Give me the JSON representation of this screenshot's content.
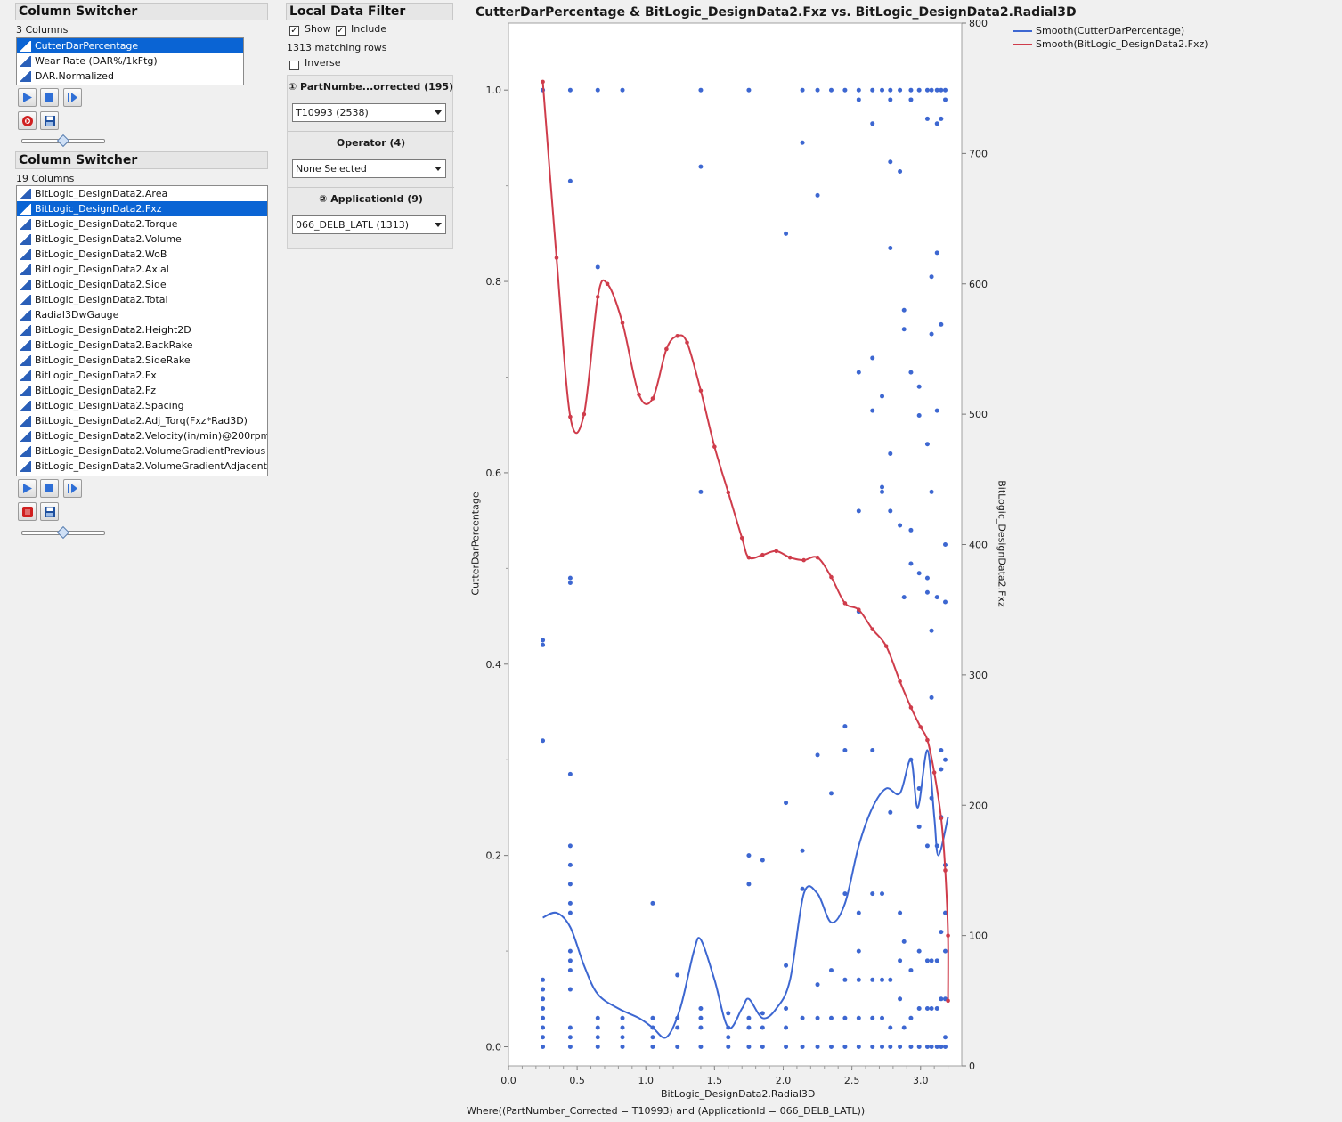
{
  "switcher1": {
    "title": "Column Switcher",
    "count": "3 Columns",
    "items": [
      {
        "label": "CutterDarPercentage",
        "selected": true
      },
      {
        "label": "Wear Rate (DAR%/1kFtg)",
        "selected": false
      },
      {
        "label": "DAR.Normalized",
        "selected": false
      }
    ]
  },
  "switcher2": {
    "title": "Column Switcher",
    "count": "19 Columns",
    "items": [
      {
        "label": "BitLogic_DesignData2.Area",
        "selected": false
      },
      {
        "label": "BitLogic_DesignData2.Fxz",
        "selected": true
      },
      {
        "label": "BitLogic_DesignData2.Torque",
        "selected": false
      },
      {
        "label": "BitLogic_DesignData2.Volume",
        "selected": false
      },
      {
        "label": "BitLogic_DesignData2.WoB",
        "selected": false
      },
      {
        "label": "BitLogic_DesignData2.Axial",
        "selected": false
      },
      {
        "label": "BitLogic_DesignData2.Side",
        "selected": false
      },
      {
        "label": "BitLogic_DesignData2.Total",
        "selected": false
      },
      {
        "label": "Radial3DwGauge",
        "selected": false
      },
      {
        "label": "BitLogic_DesignData2.Height2D",
        "selected": false
      },
      {
        "label": "BitLogic_DesignData2.BackRake",
        "selected": false
      },
      {
        "label": "BitLogic_DesignData2.SideRake",
        "selected": false
      },
      {
        "label": "BitLogic_DesignData2.Fx",
        "selected": false
      },
      {
        "label": "BitLogic_DesignData2.Fz",
        "selected": false
      },
      {
        "label": "BitLogic_DesignData2.Spacing",
        "selected": false
      },
      {
        "label": "BitLogic_DesignData2.Adj_Torq(Fxz*Rad3D)",
        "selected": false
      },
      {
        "label": "BitLogic_DesignData2.Velocity(in/min)@200rpm",
        "selected": false
      },
      {
        "label": "BitLogic_DesignData2.VolumeGradientPrevious",
        "selected": false
      },
      {
        "label": "BitLogic_DesignData2.VolumeGradientAdjacent",
        "selected": false
      }
    ]
  },
  "filter": {
    "title": "Local Data Filter",
    "show_label": "Show",
    "include_label": "Include",
    "matching": "1313 matching rows",
    "inverse_label": "Inverse",
    "sections": [
      {
        "num": "①",
        "label": "PartNumbe...orrected (195)",
        "value": "T10993 (2538)"
      },
      {
        "num": "",
        "label": "Operator (4)",
        "value": "None Selected"
      },
      {
        "num": "②",
        "label": "ApplicationId  (9)",
        "value": "066_DELB_LATL (1313)"
      }
    ]
  },
  "chart_data": {
    "type": "scatter",
    "title": "CutterDarPercentage & BitLogic_DesignData2.Fxz vs. BitLogic_DesignData2.Radial3D",
    "xlabel": "BitLogic_DesignData2.Radial3D",
    "ylabel": "CutterDarPercentage",
    "y2label": "BitLogic_DesignData2.Fxz",
    "footnote": "Where((PartNumber_Corrected = T10993) and (ApplicationId = 066_DELB_LATL))",
    "xlim": [
      0,
      3.3
    ],
    "ylim": [
      -0.02,
      1.07
    ],
    "y2lim": [
      0,
      800
    ],
    "xticks": [
      "0.0",
      "0.5",
      "1.0",
      "1.5",
      "2.0",
      "2.5",
      "3.0"
    ],
    "yticks": [
      "0.0",
      "0.2",
      "0.4",
      "0.6",
      "0.8",
      "1.0"
    ],
    "y2ticks": [
      "0",
      "100",
      "200",
      "300",
      "400",
      "500",
      "600",
      "700",
      "800"
    ],
    "legend": [
      {
        "name": "Smooth(CutterDarPercentage)",
        "color": "#3d67d1"
      },
      {
        "name": "Smooth(BitLogic_DesignData2.Fxz)",
        "color": "#cf3c4b"
      }
    ],
    "colors": {
      "points": "#3d67d1",
      "smooth1": "#3d67d1",
      "smooth2": "#cf3c4b"
    },
    "scatter_points": [
      [
        0.25,
        1.0
      ],
      [
        0.25,
        0.42
      ],
      [
        0.25,
        0.425
      ],
      [
        0.25,
        0.32
      ],
      [
        0.25,
        0.07
      ],
      [
        0.25,
        0.06
      ],
      [
        0.25,
        0.05
      ],
      [
        0.25,
        0.04
      ],
      [
        0.25,
        0.03
      ],
      [
        0.25,
        0.02
      ],
      [
        0.25,
        0.01
      ],
      [
        0.25,
        0.0
      ],
      [
        0.45,
        1.0
      ],
      [
        0.45,
        0.905
      ],
      [
        0.45,
        0.49
      ],
      [
        0.45,
        0.485
      ],
      [
        0.45,
        0.285
      ],
      [
        0.45,
        0.21
      ],
      [
        0.45,
        0.19
      ],
      [
        0.45,
        0.17
      ],
      [
        0.45,
        0.15
      ],
      [
        0.45,
        0.14
      ],
      [
        0.45,
        0.1
      ],
      [
        0.45,
        0.09
      ],
      [
        0.45,
        0.08
      ],
      [
        0.45,
        0.06
      ],
      [
        0.45,
        0.02
      ],
      [
        0.45,
        0.01
      ],
      [
        0.45,
        0.0
      ],
      [
        0.65,
        1.0
      ],
      [
        0.65,
        0.815
      ],
      [
        0.65,
        0.03
      ],
      [
        0.65,
        0.02
      ],
      [
        0.65,
        0.01
      ],
      [
        0.65,
        0.0
      ],
      [
        0.83,
        1.0
      ],
      [
        0.83,
        0.03
      ],
      [
        0.83,
        0.02
      ],
      [
        0.83,
        0.01
      ],
      [
        0.83,
        0.0
      ],
      [
        1.05,
        0.15
      ],
      [
        1.05,
        0.03
      ],
      [
        1.05,
        0.02
      ],
      [
        1.05,
        0.01
      ],
      [
        1.05,
        0.0
      ],
      [
        1.23,
        0.075
      ],
      [
        1.23,
        0.03
      ],
      [
        1.23,
        0.02
      ],
      [
        1.23,
        0.0
      ],
      [
        1.4,
        1.0
      ],
      [
        1.4,
        0.92
      ],
      [
        1.4,
        0.58
      ],
      [
        1.4,
        0.04
      ],
      [
        1.4,
        0.03
      ],
      [
        1.4,
        0.02
      ],
      [
        1.4,
        0.0
      ],
      [
        1.6,
        0.035
      ],
      [
        1.6,
        0.02
      ],
      [
        1.6,
        0.01
      ],
      [
        1.6,
        0.0
      ],
      [
        1.75,
        1.0
      ],
      [
        1.75,
        0.2
      ],
      [
        1.75,
        0.17
      ],
      [
        1.75,
        0.03
      ],
      [
        1.75,
        0.02
      ],
      [
        1.75,
        0.0
      ],
      [
        1.85,
        0.195
      ],
      [
        1.85,
        0.035
      ],
      [
        1.85,
        0.02
      ],
      [
        1.85,
        0.0
      ],
      [
        2.02,
        0.85
      ],
      [
        2.02,
        0.255
      ],
      [
        2.02,
        0.085
      ],
      [
        2.02,
        0.04
      ],
      [
        2.02,
        0.02
      ],
      [
        2.02,
        0.0
      ],
      [
        2.14,
        1.0
      ],
      [
        2.14,
        0.945
      ],
      [
        2.14,
        0.205
      ],
      [
        2.14,
        0.165
      ],
      [
        2.14,
        0.03
      ],
      [
        2.14,
        0.0
      ],
      [
        2.25,
        1.0
      ],
      [
        2.25,
        0.89
      ],
      [
        2.25,
        0.305
      ],
      [
        2.25,
        0.065
      ],
      [
        2.25,
        0.03
      ],
      [
        2.25,
        0.0
      ],
      [
        2.35,
        1.0
      ],
      [
        2.35,
        0.265
      ],
      [
        2.35,
        0.08
      ],
      [
        2.35,
        0.03
      ],
      [
        2.35,
        0.0
      ],
      [
        2.45,
        1.0
      ],
      [
        2.45,
        0.335
      ],
      [
        2.45,
        0.31
      ],
      [
        2.45,
        0.16
      ],
      [
        2.45,
        0.07
      ],
      [
        2.45,
        0.03
      ],
      [
        2.45,
        0.0
      ],
      [
        2.55,
        1.0
      ],
      [
        2.55,
        0.99
      ],
      [
        2.55,
        0.705
      ],
      [
        2.55,
        0.56
      ],
      [
        2.55,
        0.455
      ],
      [
        2.55,
        0.14
      ],
      [
        2.55,
        0.1
      ],
      [
        2.55,
        0.07
      ],
      [
        2.55,
        0.03
      ],
      [
        2.55,
        0.0
      ],
      [
        2.65,
        1.0
      ],
      [
        2.65,
        0.965
      ],
      [
        2.65,
        0.72
      ],
      [
        2.65,
        0.665
      ],
      [
        2.65,
        0.31
      ],
      [
        2.65,
        0.16
      ],
      [
        2.65,
        0.07
      ],
      [
        2.65,
        0.03
      ],
      [
        2.65,
        0.0
      ],
      [
        2.72,
        1.0
      ],
      [
        2.72,
        0.68
      ],
      [
        2.72,
        0.585
      ],
      [
        2.72,
        0.58
      ],
      [
        2.72,
        0.16
      ],
      [
        2.72,
        0.07
      ],
      [
        2.72,
        0.03
      ],
      [
        2.72,
        0.0
      ],
      [
        2.78,
        1.0
      ],
      [
        2.78,
        0.99
      ],
      [
        2.78,
        0.925
      ],
      [
        2.78,
        0.835
      ],
      [
        2.78,
        0.62
      ],
      [
        2.78,
        0.56
      ],
      [
        2.78,
        0.245
      ],
      [
        2.78,
        0.07
      ],
      [
        2.78,
        0.02
      ],
      [
        2.78,
        0.0
      ],
      [
        2.85,
        1.0
      ],
      [
        2.85,
        0.915
      ],
      [
        2.85,
        0.545
      ],
      [
        2.85,
        0.14
      ],
      [
        2.85,
        0.09
      ],
      [
        2.85,
        0.05
      ],
      [
        2.85,
        0.0
      ],
      [
        2.88,
        0.77
      ],
      [
        2.88,
        0.75
      ],
      [
        2.88,
        0.47
      ],
      [
        2.88,
        0.11
      ],
      [
        2.88,
        0.02
      ],
      [
        2.93,
        1.0
      ],
      [
        2.93,
        0.99
      ],
      [
        2.93,
        0.705
      ],
      [
        2.93,
        0.54
      ],
      [
        2.93,
        0.505
      ],
      [
        2.93,
        0.3
      ],
      [
        2.93,
        0.08
      ],
      [
        2.93,
        0.03
      ],
      [
        2.93,
        0.0
      ],
      [
        2.99,
        1.0
      ],
      [
        2.99,
        0.69
      ],
      [
        2.99,
        0.66
      ],
      [
        2.99,
        0.495
      ],
      [
        2.99,
        0.27
      ],
      [
        2.99,
        0.23
      ],
      [
        2.99,
        0.1
      ],
      [
        2.99,
        0.04
      ],
      [
        2.99,
        0.0
      ],
      [
        3.05,
        1.0
      ],
      [
        3.05,
        0.97
      ],
      [
        3.05,
        0.63
      ],
      [
        3.05,
        0.49
      ],
      [
        3.05,
        0.475
      ],
      [
        3.05,
        0.21
      ],
      [
        3.05,
        0.09
      ],
      [
        3.05,
        0.04
      ],
      [
        3.05,
        0.0
      ],
      [
        3.08,
        1.0
      ],
      [
        3.08,
        0.805
      ],
      [
        3.08,
        0.745
      ],
      [
        3.08,
        0.58
      ],
      [
        3.08,
        0.435
      ],
      [
        3.08,
        0.365
      ],
      [
        3.08,
        0.26
      ],
      [
        3.08,
        0.09
      ],
      [
        3.08,
        0.04
      ],
      [
        3.08,
        0.0
      ],
      [
        3.12,
        1.0
      ],
      [
        3.12,
        0.965
      ],
      [
        3.12,
        0.83
      ],
      [
        3.12,
        0.665
      ],
      [
        3.12,
        0.47
      ],
      [
        3.12,
        0.21
      ],
      [
        3.12,
        0.09
      ],
      [
        3.12,
        0.04
      ],
      [
        3.12,
        0.0
      ],
      [
        3.15,
        1.0
      ],
      [
        3.15,
        0.97
      ],
      [
        3.15,
        0.755
      ],
      [
        3.15,
        0.31
      ],
      [
        3.15,
        0.29
      ],
      [
        3.15,
        0.24
      ],
      [
        3.15,
        0.12
      ],
      [
        3.15,
        0.05
      ],
      [
        3.15,
        0.0
      ],
      [
        3.18,
        1.0
      ],
      [
        3.18,
        0.99
      ],
      [
        3.18,
        0.525
      ],
      [
        3.18,
        0.465
      ],
      [
        3.18,
        0.3
      ],
      [
        3.18,
        0.19
      ],
      [
        3.18,
        0.14
      ],
      [
        3.18,
        0.1
      ],
      [
        3.18,
        0.05
      ],
      [
        3.18,
        0.01
      ],
      [
        3.18,
        0.0
      ]
    ],
    "smooth_dar": [
      [
        0.25,
        0.135
      ],
      [
        0.35,
        0.14
      ],
      [
        0.45,
        0.125
      ],
      [
        0.55,
        0.085
      ],
      [
        0.65,
        0.055
      ],
      [
        0.8,
        0.04
      ],
      [
        0.95,
        0.03
      ],
      [
        1.05,
        0.02
      ],
      [
        1.15,
        0.01
      ],
      [
        1.25,
        0.04
      ],
      [
        1.35,
        0.1
      ],
      [
        1.4,
        0.112
      ],
      [
        1.5,
        0.07
      ],
      [
        1.6,
        0.02
      ],
      [
        1.7,
        0.04
      ],
      [
        1.75,
        0.05
      ],
      [
        1.85,
        0.03
      ],
      [
        1.95,
        0.04
      ],
      [
        2.05,
        0.07
      ],
      [
        2.15,
        0.16
      ],
      [
        2.25,
        0.16
      ],
      [
        2.35,
        0.13
      ],
      [
        2.45,
        0.15
      ],
      [
        2.55,
        0.21
      ],
      [
        2.65,
        0.25
      ],
      [
        2.75,
        0.27
      ],
      [
        2.85,
        0.265
      ],
      [
        2.93,
        0.3
      ],
      [
        2.98,
        0.25
      ],
      [
        3.05,
        0.31
      ],
      [
        3.1,
        0.24
      ],
      [
        3.13,
        0.2
      ],
      [
        3.2,
        0.24
      ]
    ],
    "smooth_fxz": [
      [
        0.25,
        755
      ],
      [
        0.35,
        620
      ],
      [
        0.45,
        498
      ],
      [
        0.55,
        500
      ],
      [
        0.65,
        590
      ],
      [
        0.72,
        600
      ],
      [
        0.83,
        570
      ],
      [
        0.95,
        515
      ],
      [
        1.05,
        512
      ],
      [
        1.15,
        550
      ],
      [
        1.23,
        560
      ],
      [
        1.3,
        555
      ],
      [
        1.4,
        518
      ],
      [
        1.5,
        475
      ],
      [
        1.6,
        440
      ],
      [
        1.7,
        405
      ],
      [
        1.75,
        390
      ],
      [
        1.85,
        392
      ],
      [
        1.95,
        395
      ],
      [
        2.05,
        390
      ],
      [
        2.15,
        388
      ],
      [
        2.25,
        390
      ],
      [
        2.35,
        375
      ],
      [
        2.45,
        355
      ],
      [
        2.55,
        350
      ],
      [
        2.65,
        335
      ],
      [
        2.75,
        322
      ],
      [
        2.85,
        295
      ],
      [
        2.93,
        275
      ],
      [
        3.0,
        260
      ],
      [
        3.05,
        250
      ],
      [
        3.1,
        225
      ],
      [
        3.15,
        190
      ],
      [
        3.18,
        150
      ],
      [
        3.2,
        100
      ],
      [
        3.2,
        50
      ]
    ]
  }
}
